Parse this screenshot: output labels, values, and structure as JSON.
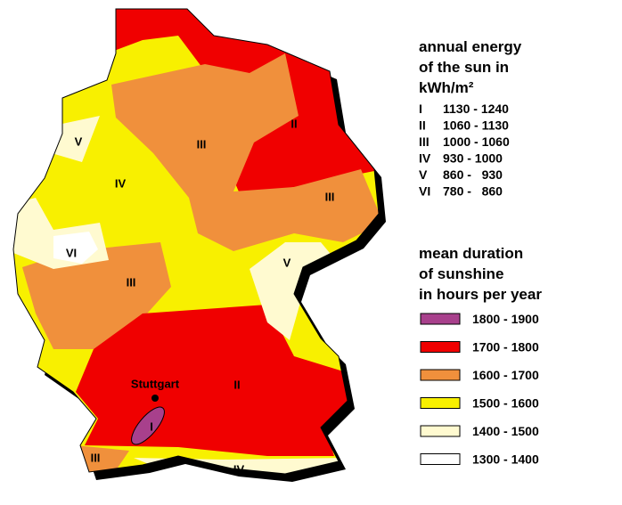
{
  "energy_legend": {
    "title": [
      "annual energy",
      "of the sun in",
      "kWh/m²"
    ],
    "rows": [
      {
        "class": "I",
        "range": "1130 - 1240"
      },
      {
        "class": "II",
        "range": "1060 - 1130"
      },
      {
        "class": "III",
        "range": "1000 - 1060"
      },
      {
        "class": "IV",
        "range": "930 - 1000"
      },
      {
        "class": "V",
        "range": "860 -   930"
      },
      {
        "class": "VI",
        "range": "780 -   860"
      }
    ]
  },
  "sunshine_legend": {
    "title": [
      "mean duration",
      "of sunshine",
      "in hours per year"
    ],
    "rows": [
      {
        "range": "1800 - 1900",
        "color": "#a8408c"
      },
      {
        "range": "1700 - 1800",
        "color": "#f00000"
      },
      {
        "range": "1600 - 1700",
        "color": "#f0903c"
      },
      {
        "range": "1500 - 1600",
        "color": "#f8f000"
      },
      {
        "range": "1400 - 1500",
        "color": "#fffad0"
      },
      {
        "range": "1300 - 1400",
        "color": "#ffffff"
      }
    ]
  },
  "map": {
    "labels": [
      "V",
      "IV",
      "III",
      "II",
      "III",
      "VI",
      "V",
      "III",
      "II",
      "I",
      "III",
      "IV"
    ],
    "city": "Stuttgart"
  }
}
